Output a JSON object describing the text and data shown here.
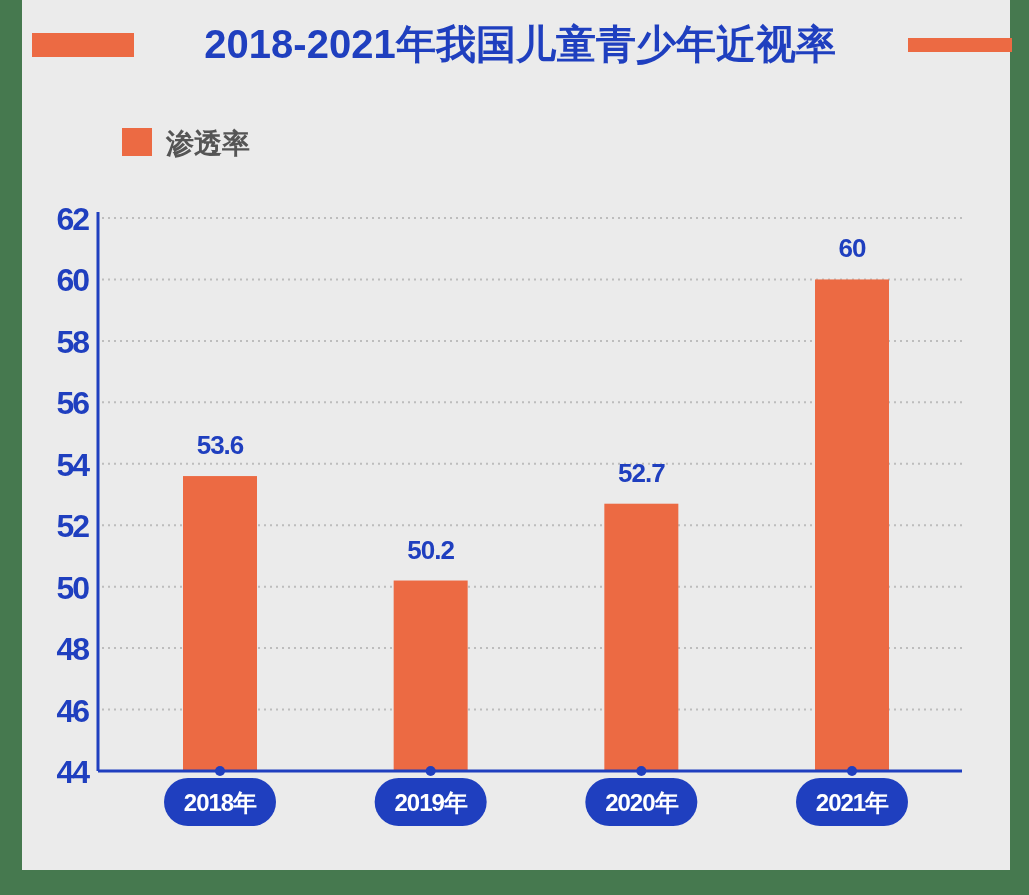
{
  "chart_data": {
    "type": "bar",
    "title": "2018-2021年我国儿童青少年近视率",
    "categories": [
      "2018年",
      "2019年",
      "2020年",
      "2021年"
    ],
    "series": [
      {
        "name": "渗透率",
        "color": "#ec6a43",
        "values": [
          53.6,
          50.2,
          52.7,
          60
        ]
      }
    ],
    "ylim": [
      44,
      62
    ],
    "yticks": [
      44,
      46,
      48,
      50,
      52,
      54,
      56,
      58,
      60,
      62
    ],
    "grid": "y",
    "legend": "top left",
    "data_labels": true
  }
}
